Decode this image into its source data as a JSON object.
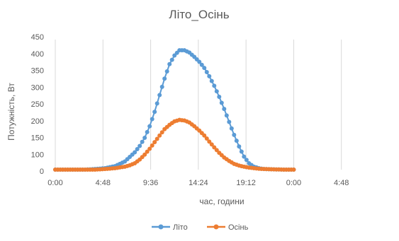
{
  "chart_data": {
    "type": "line",
    "title": "Літо_Осінь",
    "xlabel": "час, години",
    "ylabel": "Потужність, Вт",
    "ylim": [
      0,
      450
    ],
    "y_ticks": [
      0,
      100,
      150,
      200,
      250,
      300,
      350,
      400,
      450
    ],
    "y_tick_labels": [
      "0",
      "100",
      "150",
      "200",
      "250",
      "300",
      "350",
      "400",
      "450"
    ],
    "x_unit": "hours",
    "xlim": [
      0,
      33.6
    ],
    "x_ticks": [
      0,
      4.8,
      9.6,
      14.4,
      19.2,
      24,
      28.8
    ],
    "x_tick_labels": [
      "0:00",
      "4:48",
      "9:36",
      "14:24",
      "19:12",
      "0:00",
      "4:48"
    ],
    "grid": "vertical",
    "legend_position": "bottom",
    "series": [
      {
        "name": "Літо",
        "color": "#5b9bd5",
        "marker": "circle",
        "x": [
          0,
          1,
          2,
          3,
          4,
          5,
          6,
          7,
          8,
          8.5,
          9,
          9.5,
          10,
          10.5,
          11,
          11.5,
          12,
          12.5,
          13,
          13.5,
          14,
          14.5,
          15,
          15.5,
          16,
          16.5,
          17,
          17.5,
          18,
          18.5,
          19,
          19.5,
          20,
          20.5,
          21,
          22,
          23,
          24
        ],
        "values": [
          0,
          0,
          0,
          0,
          2,
          5,
          12,
          28,
          60,
          82,
          110,
          150,
          200,
          258,
          315,
          365,
          395,
          413,
          413,
          405,
          390,
          373,
          352,
          323,
          290,
          252,
          210,
          165,
          120,
          80,
          45,
          22,
          10,
          5,
          2,
          1,
          0,
          0
        ]
      },
      {
        "name": "Осінь",
        "color": "#ed7d31",
        "marker": "circle",
        "x": [
          0,
          1,
          2,
          3,
          4,
          5,
          6,
          7,
          7.5,
          8,
          8.5,
          9,
          9.5,
          10,
          10.5,
          11,
          11.5,
          12,
          12.5,
          13,
          13.5,
          14,
          14.5,
          15,
          15.5,
          16,
          16.5,
          17,
          17.5,
          18,
          18.5,
          19,
          19.5,
          20,
          20.5,
          21,
          22,
          23,
          24
        ],
        "values": [
          0,
          0,
          0,
          0,
          0,
          2,
          5,
          10,
          15,
          22,
          35,
          52,
          72,
          95,
          118,
          140,
          155,
          167,
          172,
          170,
          163,
          150,
          135,
          118,
          97,
          77,
          58,
          42,
          30,
          20,
          14,
          10,
          7,
          5,
          3,
          2,
          1,
          0,
          0
        ]
      }
    ]
  }
}
